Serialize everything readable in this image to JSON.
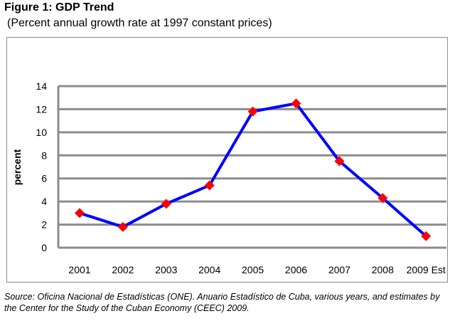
{
  "title": "Figure 1: GDP Trend",
  "subtitle": "(Percent annual growth rate at 1997 constant prices)",
  "source": "Source: Oficina Nacional de Estadísticas (ONE). Anuario Estadístico de Cuba, various years, and estimates by the Center for the Study of the Cuban Economy (CEEC) 2009.",
  "chart_data": {
    "type": "line",
    "title": "Figure 1: GDP Trend",
    "subtitle": "(Percent annual growth rate at 1997 constant prices)",
    "xlabel": "",
    "ylabel": "percent",
    "categories": [
      "2001",
      "2002",
      "2003",
      "2004",
      "2005",
      "2006",
      "2007",
      "2008",
      "2009 Est"
    ],
    "values": [
      3.0,
      1.8,
      3.8,
      5.4,
      11.8,
      12.5,
      7.5,
      4.3,
      1.0
    ],
    "ylim": [
      0,
      14
    ],
    "yticks": [
      0,
      2,
      4,
      6,
      8,
      10,
      12,
      14
    ],
    "grid": true,
    "line_color": "#0000ff",
    "marker_color": "#ff0000",
    "marker": "diamond"
  }
}
